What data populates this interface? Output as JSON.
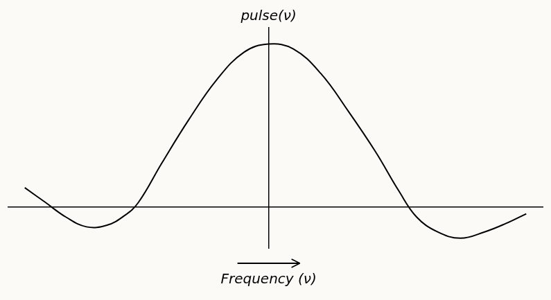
{
  "chart_data": {
    "type": "line",
    "y_label": "pulse(ν)",
    "x_label": "Frequency (ν)",
    "x": [
      -1.78,
      -1.63,
      -1.48,
      -1.33,
      -1.18,
      -1.05,
      -0.95,
      -0.78,
      -0.58,
      -0.38,
      -0.18,
      0,
      0.18,
      0.38,
      0.58,
      0.78,
      0.95,
      1.08,
      1.23,
      1.4,
      1.58,
      1.73,
      1.88
    ],
    "values": [
      0.12,
      0.03,
      -0.06,
      -0.12,
      -0.11,
      -0.05,
      0.03,
      0.27,
      0.54,
      0.78,
      0.95,
      1.0,
      0.97,
      0.82,
      0.59,
      0.34,
      0.1,
      -0.06,
      -0.15,
      -0.19,
      -0.15,
      -0.1,
      -0.04
    ],
    "xlim": [
      -1.9,
      2.0
    ],
    "ylim": [
      -0.25,
      1.1
    ],
    "tick_labels": false,
    "grid": false,
    "color": "#000000",
    "marker": "none",
    "line_style": "solid"
  }
}
